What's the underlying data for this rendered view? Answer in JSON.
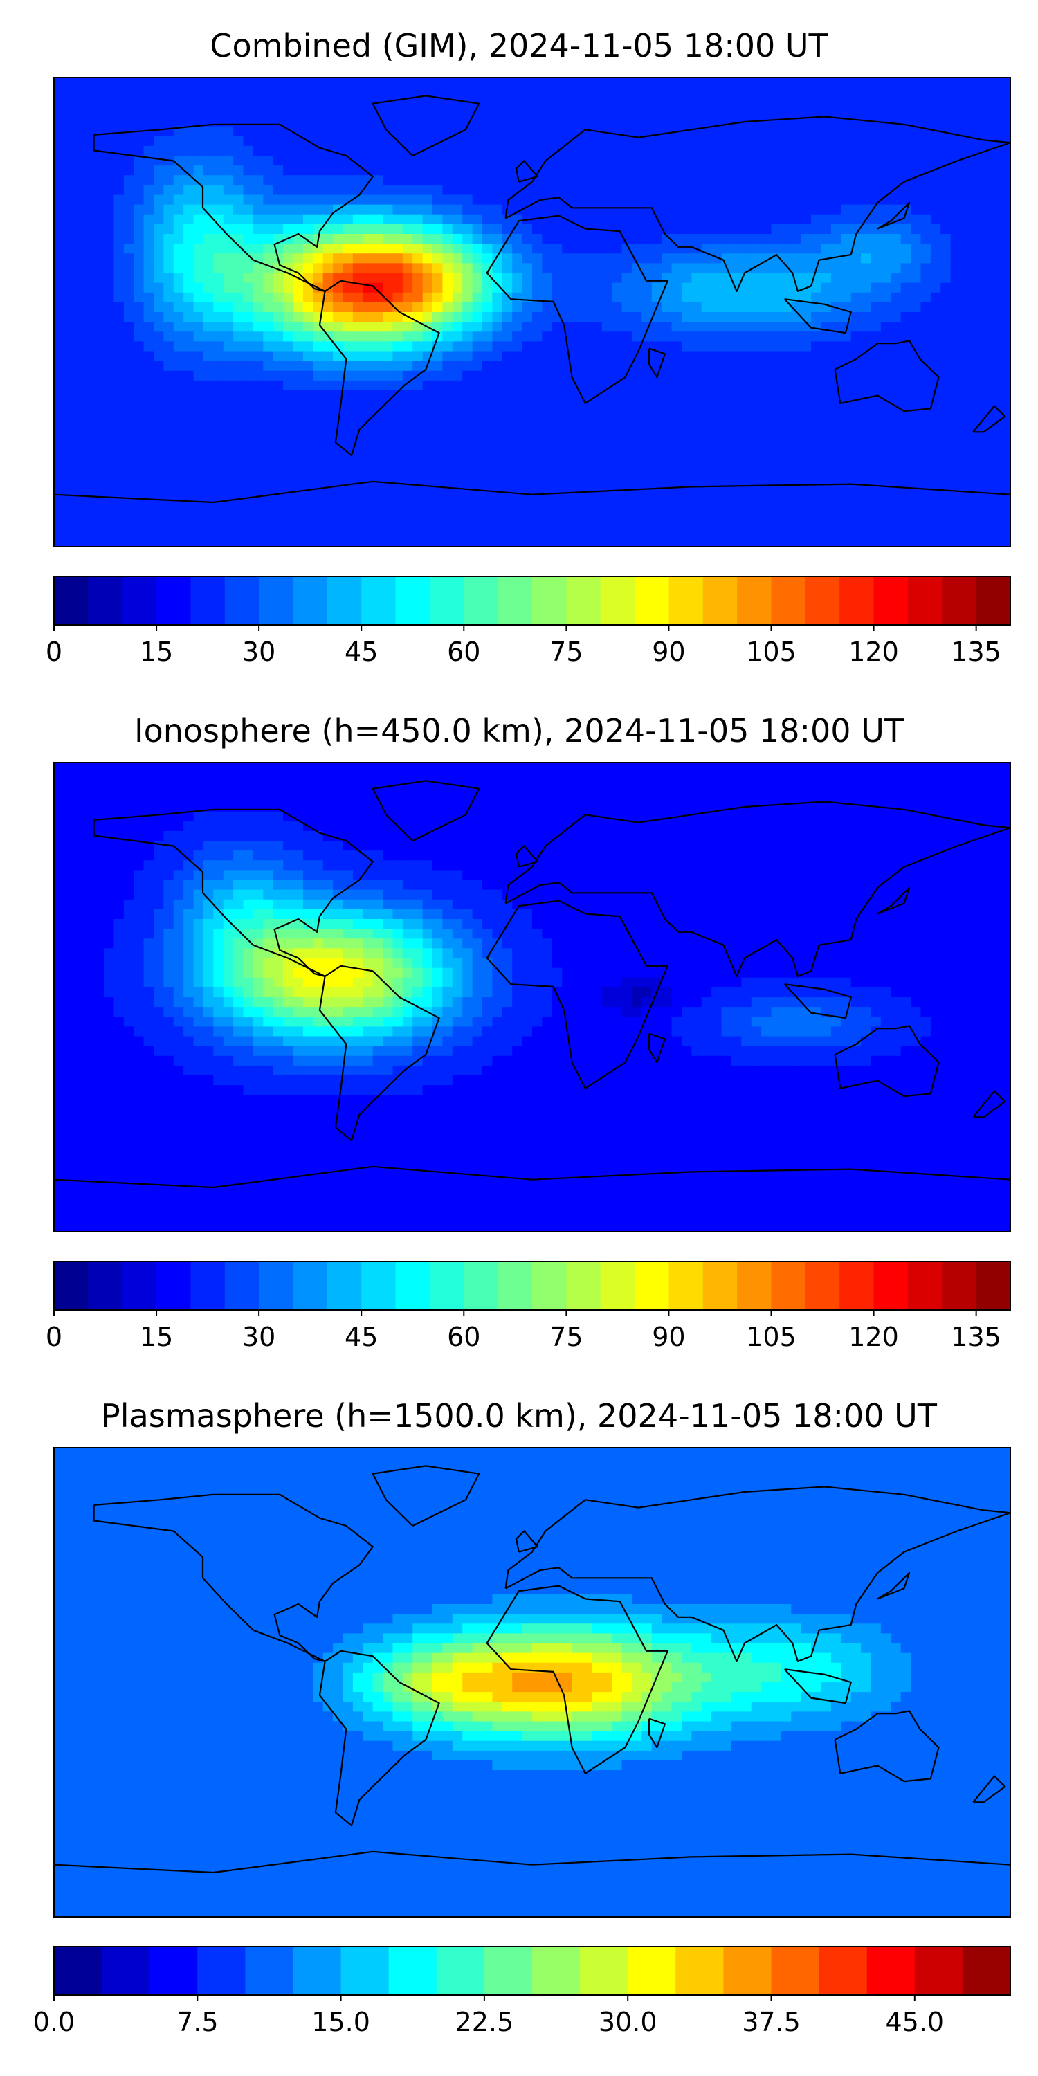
{
  "chart_data": [
    {
      "type": "heatmap",
      "title": "Combined (GIM), 2024-11-05 18:00 UT",
      "colormap": "jet",
      "colorbar": {
        "ticks": [
          "0",
          "15",
          "30",
          "45",
          "60",
          "75",
          "90",
          "105",
          "120",
          "135"
        ],
        "vmin": 0,
        "vmax": 140,
        "levels": 28
      },
      "blobs": [
        {
          "lon": -65,
          "lat": 10,
          "slon": 40,
          "slat": 24,
          "amp": 90
        },
        {
          "lon": -35,
          "lat": 12,
          "slon": 30,
          "slat": 18,
          "amp": 25
        },
        {
          "lon": -125,
          "lat": 25,
          "slon": 25,
          "slat": 35,
          "amp": 30
        },
        {
          "lon": 80,
          "lat": 8,
          "slon": 50,
          "slat": 18,
          "amp": 25
        },
        {
          "lon": 130,
          "lat": 25,
          "slon": 25,
          "slat": 15,
          "amp": 15
        }
      ],
      "base": 20,
      "annotations": [
        "bright maximum over northern South America and the tropical Atlantic"
      ]
    },
    {
      "type": "heatmap",
      "title": "Ionosphere  (h=450.0 km), 2024-11-05 18:00 UT",
      "colormap": "jet",
      "colorbar": {
        "ticks": [
          "0",
          "15",
          "30",
          "45",
          "60",
          "75",
          "90",
          "105",
          "120",
          "135"
        ],
        "vmin": 0,
        "vmax": 140,
        "levels": 28
      },
      "blobs": [
        {
          "lon": -75,
          "lat": 8,
          "slon": 45,
          "slat": 25,
          "amp": 70
        },
        {
          "lon": -110,
          "lat": 35,
          "slon": 25,
          "slat": 25,
          "amp": 20
        },
        {
          "lon": 100,
          "lat": -10,
          "slon": 35,
          "slat": 12,
          "amp": 15
        },
        {
          "lon": 40,
          "lat": 0,
          "slon": 15,
          "slat": 6,
          "amp": -10
        }
      ],
      "base": 18
    },
    {
      "type": "heatmap",
      "title": "Plasmasphere (h=1500.0 km), 2024-11-05 18:00 UT",
      "colormap": "jet",
      "colorbar": {
        "ticks": [
          "0.0",
          "7.5",
          "15.0",
          "22.5",
          "30.0",
          "37.5",
          "45.0"
        ],
        "vmin": 0,
        "vmax": 50,
        "levels": 20
      },
      "blobs": [
        {
          "lon": 10,
          "lat": 0,
          "slon": 55,
          "slat": 22,
          "amp": 25
        },
        {
          "lon": -40,
          "lat": 0,
          "slon": 30,
          "slat": 15,
          "amp": 8
        },
        {
          "lon": 100,
          "lat": 5,
          "slon": 40,
          "slat": 20,
          "amp": 8
        }
      ],
      "base": 10
    }
  ]
}
